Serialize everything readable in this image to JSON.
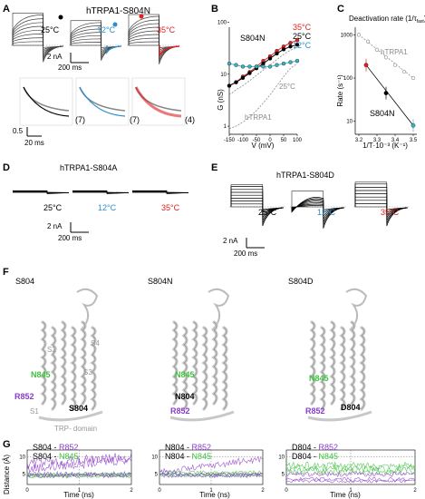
{
  "panels": {
    "A": {
      "letter": "A",
      "title": "hTRPA1-S804N",
      "temps": [
        "25°C",
        "12°C",
        "35°C"
      ],
      "scale_current": "2 nA",
      "scale_time": "200 ms",
      "norm_counts": [
        "(7)",
        "(7)",
        "(4)"
      ],
      "norm_scale_amp": "0.5",
      "norm_scale_time": "20 ms"
    },
    "B": {
      "letter": "B",
      "title": "S804N",
      "ylabel": "G (nS)",
      "xlabel": "V (mV)",
      "yticks": [
        "1",
        "10",
        "100"
      ],
      "xticks": [
        "-150",
        "-100",
        "-50",
        "0",
        "50",
        "100"
      ],
      "legend": [
        "35°C",
        "25°C",
        "12°C"
      ],
      "ref_label_25": "25°C",
      "ref_label_wt": "hTRPA1"
    },
    "C": {
      "letter": "C",
      "title_prefix": "Deactivation rate (1/τ",
      "title_sub": "fast",
      "title_suffix": ")",
      "ylabel": "Rate (s⁻¹)",
      "xlabel": "1/T·10⁻³ (K⁻¹)",
      "yticks": [
        "1000",
        "100",
        "10"
      ],
      "xticks": [
        "3.2",
        "3.3",
        "3.4",
        "3.5"
      ],
      "label_wt": "hTRPA1",
      "label_mut": "S804N"
    },
    "D": {
      "letter": "D",
      "title": "hTRPA1-S804A",
      "temps": [
        "25°C",
        "12°C",
        "35°C"
      ],
      "scale_current": "2 nA",
      "scale_time": "200 ms"
    },
    "E": {
      "letter": "E",
      "title": "hTRPA1-S804D",
      "temps": [
        "25°C",
        "12°C",
        "35°C"
      ],
      "scale_current": "2 nA",
      "scale_time": "200 ms"
    },
    "F": {
      "letter": "F",
      "structures": [
        {
          "title": "S804",
          "labels": {
            "N845": "N845",
            "R852": "R852",
            "res": "S804",
            "S1": "S1",
            "S2": "S2",
            "S3": "S3",
            "S4": "S4",
            "TRP": "TRP- domain"
          }
        },
        {
          "title": "S804N",
          "labels": {
            "N845": "N845",
            "R852": "R852",
            "res": "N804"
          }
        },
        {
          "title": "S804D",
          "labels": {
            "N845": "N845",
            "R852": "R852",
            "res": "D804"
          }
        }
      ]
    },
    "G": {
      "letter": "G",
      "ylabel": "Distance (Å)",
      "xlabel": "Time (ns)",
      "yticks": [
        "5",
        "10"
      ],
      "xticks": [
        "0",
        "1",
        "2"
      ],
      "plots": [
        {
          "line1_a": "S804 - ",
          "line1_b": "R852",
          "line2_a": "S804 - ",
          "line2_b": "N845"
        },
        {
          "line1_a": "N804 - ",
          "line1_b": "R852",
          "line2_a": "N804 - ",
          "line2_b": "N845"
        },
        {
          "line1_a": "D804 - ",
          "line1_b": "R852",
          "line2_a": "D804 - ",
          "line2_b": "N845"
        }
      ]
    }
  },
  "colors": {
    "c25": "#000000",
    "c12": "#2a8fd0",
    "c35": "#e02020",
    "green": "#3fc23f",
    "purple": "#8a3cc8",
    "gray": "#8a8a8a",
    "teal": "#3ab0c0"
  },
  "chart_data": [
    {
      "type": "line",
      "panel": "B",
      "title": "S804N",
      "xlabel": "V (mV)",
      "ylabel": "G (nS)",
      "xlim": [
        -150,
        100
      ],
      "ylim": [
        0.7,
        80
      ],
      "yscale": "log",
      "series": [
        {
          "name": "35°C",
          "x": [
            -150,
            -125,
            -100,
            -75,
            -50,
            -25,
            0,
            25,
            50,
            75,
            100
          ],
          "values": [
            6,
            7,
            9,
            11,
            14,
            18,
            22,
            28,
            34,
            40,
            45
          ]
        },
        {
          "name": "25°C",
          "x": [
            -150,
            -125,
            -100,
            -75,
            -50,
            -25,
            0,
            25,
            50,
            75,
            100
          ],
          "values": [
            6,
            7,
            8.5,
            10.5,
            13,
            16,
            20,
            25,
            30,
            34,
            37
          ]
        },
        {
          "name": "12°C",
          "x": [
            -150,
            -125,
            -100,
            -75,
            -50,
            -25,
            0,
            25,
            50,
            75,
            100
          ],
          "values": [
            16,
            15,
            14,
            14,
            14,
            14,
            14,
            15,
            16,
            17,
            18
          ]
        },
        {
          "name": "25°C",
          "x": [
            -150,
            -125,
            -100,
            -75,
            -50,
            -25,
            0,
            25,
            50,
            75,
            100
          ],
          "values": [
            4,
            5,
            6,
            7.5,
            9.5,
            12,
            15,
            19,
            24,
            29,
            32
          ]
        },
        {
          "name": "hTRPA1",
          "x": [
            -150,
            -125,
            -100,
            -75,
            -50,
            -25,
            0,
            25,
            50,
            75,
            100
          ],
          "values": [
            0.9,
            1,
            1.2,
            1.5,
            2,
            2.8,
            4,
            6,
            9,
            13,
            16
          ]
        }
      ]
    },
    {
      "type": "scatter",
      "panel": "C",
      "title": "Deactivation rate (1/τfast)",
      "xlabel": "1/T·10⁻³ (K⁻¹)",
      "ylabel": "Rate (s⁻¹)",
      "xlim": [
        3.18,
        3.52
      ],
      "ylim": [
        5,
        1500
      ],
      "yscale": "log",
      "series": [
        {
          "name": "hTRPA1",
          "x": [
            3.2,
            3.25,
            3.3,
            3.35,
            3.4,
            3.45,
            3.5
          ],
          "values": [
            1000,
            700,
            450,
            300,
            200,
            140,
            100
          ]
        },
        {
          "name": "S804N",
          "x": [
            3.24,
            3.35,
            3.5
          ],
          "values": [
            200,
            45,
            8
          ]
        }
      ]
    }
  ]
}
